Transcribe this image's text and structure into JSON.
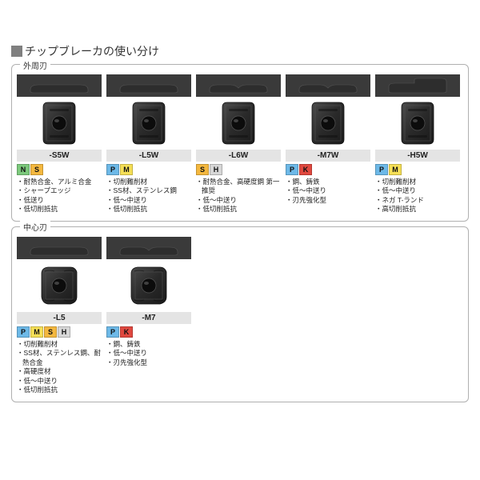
{
  "title": "チップブレーカの使い分け",
  "badgeColors": {
    "N": "#7cc97c",
    "S": "#f4b83f",
    "P": "#6db9e8",
    "M": "#f5df56",
    "H": "#d7d7d7",
    "K": "#e0483f"
  },
  "groups": [
    {
      "label": "外周刃",
      "cards": [
        {
          "code": "-S5W",
          "badges": [
            "N",
            "S"
          ],
          "features": [
            "耐熱合金、アルミ合金",
            "シャープエッジ",
            "低送り",
            "低切削抵抗"
          ],
          "profile": "flat",
          "insert": "rect"
        },
        {
          "code": "-L5W",
          "badges": [
            "P",
            "M"
          ],
          "features": [
            "切削難削材",
            "SS材、ステンレス鋼",
            "低～中送り",
            "低切削抵抗"
          ],
          "profile": "flat",
          "insert": "rect"
        },
        {
          "code": "-L6W",
          "badges": [
            "S",
            "H"
          ],
          "features": [
            "耐熱合金、高硬度鋼 第一推奨",
            "低～中送り",
            "低切削抵抗"
          ],
          "profile": "notch",
          "insert": "rect"
        },
        {
          "code": "-M7W",
          "badges": [
            "P",
            "K"
          ],
          "features": [
            "鋼、鋳鉄",
            "低～中送り",
            "刃先強化型"
          ],
          "profile": "notch",
          "insert": "rect"
        },
        {
          "code": "-H5W",
          "badges": [
            "P",
            "M"
          ],
          "features": [
            "切削難削材",
            "低～中送り",
            "ネガ T-ランド",
            "高切削抵抗"
          ],
          "profile": "step",
          "insert": "rect"
        }
      ]
    },
    {
      "label": "中心刃",
      "cards": [
        {
          "code": "-L5",
          "badges": [
            "P",
            "M",
            "S",
            "H"
          ],
          "features": [
            "切削難削材",
            "SS材、ステンレス鋼、耐熱合金",
            "高硬度材",
            "低～中送り",
            "低切削抵抗"
          ],
          "profile": "flat",
          "insert": "square"
        },
        {
          "code": "-M7",
          "badges": [
            "P",
            "K"
          ],
          "features": [
            "鋼、鋳鉄",
            "低～中送り",
            "刃先強化型"
          ],
          "profile": "notch",
          "insert": "square"
        }
      ]
    }
  ]
}
